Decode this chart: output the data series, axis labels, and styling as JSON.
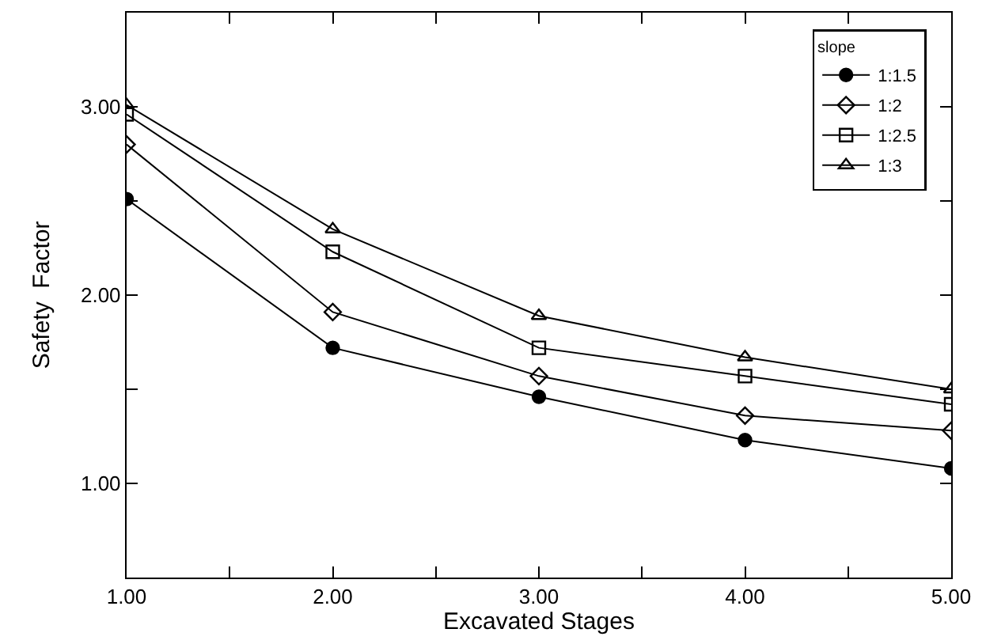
{
  "chart_data": {
    "type": "line",
    "xlabel": "Excavated Stages",
    "ylabel": "Safety  Factor",
    "legend_title": "slope",
    "legend": "top right",
    "x": [
      1,
      2,
      3,
      4,
      5
    ],
    "xlim": [
      1,
      5
    ],
    "xticks": [
      {
        "value": 1,
        "label": "1.00"
      },
      {
        "value": 1.5,
        "label": null
      },
      {
        "value": 2,
        "label": "2.00"
      },
      {
        "value": 2.5,
        "label": null
      },
      {
        "value": 3,
        "label": "3.00"
      },
      {
        "value": 3.5,
        "label": null
      },
      {
        "value": 4,
        "label": "4.00"
      },
      {
        "value": 4.5,
        "label": null
      },
      {
        "value": 5,
        "label": "5.00"
      }
    ],
    "ylim": [
      0.5,
      3.5
    ],
    "yticks": [
      {
        "value": 1,
        "label": "1.00"
      },
      {
        "value": 1.5,
        "label": null
      },
      {
        "value": 2,
        "label": "2.00"
      },
      {
        "value": 2.5,
        "label": null
      },
      {
        "value": 3,
        "label": "3.00"
      }
    ],
    "line_style": "solid",
    "series": [
      {
        "name": "1:1.5",
        "color": "#000000",
        "marker": "circle",
        "values": [
          2.51,
          1.72,
          1.46,
          1.23,
          1.08
        ]
      },
      {
        "name": "1:2",
        "color": "#000000",
        "marker": "diamond",
        "values": [
          2.8,
          1.91,
          1.57,
          1.36,
          1.28
        ]
      },
      {
        "name": "1:2.5",
        "color": "#000000",
        "marker": "square",
        "values": [
          2.96,
          2.23,
          1.72,
          1.57,
          1.42
        ]
      },
      {
        "name": "1:3",
        "color": "#000000",
        "marker": "triangle",
        "values": [
          3.01,
          2.35,
          1.89,
          1.67,
          1.5
        ]
      }
    ]
  }
}
